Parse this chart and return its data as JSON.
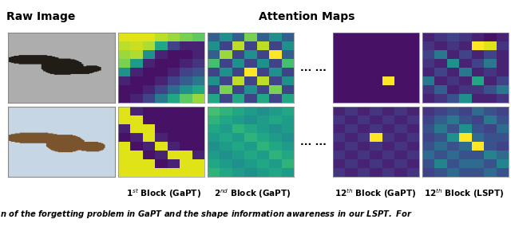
{
  "title_attention": "Attention Maps",
  "title_raw": "Raw Image",
  "label_1": "1$^{st}$ Block (GaPT)",
  "label_2": "2$^{nd}$ Block (GaPT)",
  "label_3": "12$^{th}$ Block (GaPT)",
  "label_4": "12$^{th}$ Block (LSPT)",
  "ellipsis": "... ...",
  "bg_color": "#ffffff",
  "title_fontsize": 10,
  "label_fontsize": 7.5,
  "attn_map_1_bird1": [
    [
      0.95,
      0.95,
      0.95,
      0.9,
      0.85,
      0.8,
      0.75
    ],
    [
      0.9,
      0.92,
      0.88,
      0.6,
      0.2,
      0.1,
      0.1
    ],
    [
      0.85,
      0.88,
      0.5,
      0.1,
      0.05,
      0.05,
      0.1
    ],
    [
      0.8,
      0.55,
      0.1,
      0.05,
      0.05,
      0.1,
      0.15
    ],
    [
      0.5,
      0.1,
      0.05,
      0.05,
      0.1,
      0.2,
      0.25
    ],
    [
      0.1,
      0.05,
      0.05,
      0.1,
      0.2,
      0.3,
      0.4
    ],
    [
      0.05,
      0.05,
      0.1,
      0.2,
      0.35,
      0.5,
      0.6
    ],
    [
      0.05,
      0.1,
      0.2,
      0.4,
      0.6,
      0.75,
      0.85
    ]
  ],
  "attn_map_2_bird1": [
    [
      0.3,
      0.5,
      0.3,
      0.8,
      0.3,
      0.5,
      0.3
    ],
    [
      0.5,
      0.2,
      0.9,
      0.2,
      0.9,
      0.2,
      0.5
    ],
    [
      0.3,
      0.85,
      0.2,
      0.5,
      0.2,
      1.0,
      0.3
    ],
    [
      0.7,
      0.2,
      0.5,
      0.2,
      0.5,
      0.2,
      0.7
    ],
    [
      0.2,
      0.5,
      0.2,
      1.0,
      0.2,
      0.5,
      0.2
    ],
    [
      0.5,
      0.2,
      0.9,
      0.2,
      0.9,
      0.2,
      0.5
    ],
    [
      0.2,
      0.8,
      0.2,
      0.5,
      0.2,
      0.8,
      0.2
    ],
    [
      0.6,
      0.2,
      0.6,
      0.2,
      0.6,
      0.2,
      0.6
    ]
  ],
  "attn_map_3_bird1": [
    [
      0.05,
      0.05,
      0.05,
      0.05,
      0.05,
      0.05,
      0.05
    ],
    [
      0.05,
      0.05,
      0.05,
      0.05,
      0.05,
      0.05,
      0.05
    ],
    [
      0.05,
      0.05,
      0.05,
      0.05,
      0.05,
      0.05,
      0.05
    ],
    [
      0.05,
      0.05,
      0.05,
      0.05,
      0.05,
      0.05,
      0.05
    ],
    [
      0.05,
      0.05,
      0.05,
      0.05,
      0.05,
      0.05,
      0.05
    ],
    [
      0.05,
      0.05,
      0.05,
      0.05,
      1.0,
      0.05,
      0.05
    ],
    [
      0.05,
      0.05,
      0.05,
      0.05,
      0.05,
      0.05,
      0.05
    ],
    [
      0.05,
      0.05,
      0.05,
      0.05,
      0.05,
      0.05,
      0.05
    ]
  ],
  "attn_map_4_bird1": [
    [
      0.1,
      0.15,
      0.2,
      0.15,
      0.1,
      0.05,
      0.1
    ],
    [
      0.15,
      0.1,
      0.15,
      0.1,
      1.0,
      0.95,
      0.15
    ],
    [
      0.2,
      0.4,
      0.1,
      0.2,
      0.1,
      0.2,
      0.1
    ],
    [
      0.15,
      0.1,
      0.5,
      0.1,
      0.2,
      0.4,
      0.1
    ],
    [
      0.1,
      0.2,
      0.1,
      0.4,
      0.1,
      0.15,
      0.1
    ],
    [
      0.4,
      0.1,
      0.15,
      0.1,
      0.6,
      0.1,
      0.2
    ],
    [
      0.15,
      0.3,
      0.1,
      0.15,
      0.15,
      0.25,
      0.4
    ],
    [
      0.1,
      0.15,
      0.25,
      0.5,
      0.1,
      0.1,
      0.15
    ]
  ],
  "attn_map_1_bird2": [
    [
      0.95,
      0.1,
      0.05,
      0.05,
      0.05,
      0.05,
      0.05
    ],
    [
      0.95,
      0.95,
      0.05,
      0.05,
      0.05,
      0.05,
      0.05
    ],
    [
      0.1,
      0.95,
      0.95,
      0.05,
      0.05,
      0.05,
      0.05
    ],
    [
      0.05,
      0.1,
      0.95,
      0.1,
      0.05,
      0.05,
      0.05
    ],
    [
      0.95,
      0.05,
      0.1,
      0.95,
      0.1,
      0.05,
      0.05
    ],
    [
      0.95,
      0.95,
      0.05,
      0.1,
      0.95,
      0.95,
      0.1
    ],
    [
      0.95,
      0.95,
      0.95,
      0.05,
      0.1,
      0.95,
      0.95
    ],
    [
      0.95,
      0.95,
      0.95,
      0.95,
      0.95,
      0.95,
      0.95
    ]
  ],
  "attn_map_2_bird2": [
    [
      0.7,
      0.65,
      0.6,
      0.55,
      0.5,
      0.55,
      0.6
    ],
    [
      0.65,
      0.6,
      0.55,
      0.5,
      0.55,
      0.6,
      0.55
    ],
    [
      0.6,
      0.55,
      0.65,
      0.6,
      0.55,
      0.5,
      0.55
    ],
    [
      0.55,
      0.6,
      0.55,
      0.65,
      0.6,
      0.55,
      0.5
    ],
    [
      0.5,
      0.55,
      0.6,
      0.55,
      0.65,
      0.6,
      0.55
    ],
    [
      0.55,
      0.5,
      0.55,
      0.6,
      0.55,
      0.65,
      0.6
    ],
    [
      0.6,
      0.55,
      0.5,
      0.55,
      0.6,
      0.55,
      0.65
    ],
    [
      0.65,
      0.6,
      0.55,
      0.5,
      0.55,
      0.6,
      0.55
    ]
  ],
  "attn_map_3_bird2": [
    [
      0.1,
      0.15,
      0.1,
      0.15,
      0.1,
      0.15,
      0.1
    ],
    [
      0.15,
      0.1,
      0.15,
      0.1,
      0.15,
      0.1,
      0.15
    ],
    [
      0.1,
      0.15,
      0.1,
      0.15,
      0.1,
      0.15,
      0.1
    ],
    [
      0.15,
      0.1,
      0.15,
      1.0,
      0.15,
      0.1,
      0.15
    ],
    [
      0.1,
      0.15,
      0.1,
      0.15,
      0.1,
      0.15,
      0.1
    ],
    [
      0.15,
      0.1,
      0.15,
      0.1,
      0.15,
      0.1,
      0.15
    ],
    [
      0.1,
      0.15,
      0.1,
      0.15,
      0.1,
      0.15,
      0.1
    ],
    [
      0.15,
      0.1,
      0.15,
      0.1,
      0.15,
      0.1,
      0.15
    ]
  ],
  "attn_map_4_bird2": [
    [
      0.15,
      0.2,
      0.25,
      0.2,
      0.35,
      0.25,
      0.2
    ],
    [
      0.2,
      0.3,
      0.4,
      0.25,
      0.2,
      0.4,
      0.25
    ],
    [
      0.25,
      0.4,
      0.25,
      0.5,
      0.25,
      0.2,
      0.35
    ],
    [
      0.2,
      0.25,
      0.5,
      1.0,
      0.35,
      0.25,
      0.25
    ],
    [
      0.25,
      0.35,
      0.25,
      0.35,
      1.0,
      0.25,
      0.2
    ],
    [
      0.35,
      0.25,
      0.35,
      0.25,
      0.25,
      0.45,
      0.35
    ],
    [
      0.25,
      0.45,
      0.25,
      0.35,
      0.35,
      0.25,
      0.45
    ],
    [
      0.2,
      0.25,
      0.35,
      0.25,
      0.25,
      0.35,
      0.25
    ]
  ],
  "bird1_gray_level": 0.68,
  "bird2_sky_r": 0.78,
  "bird2_sky_g": 0.84,
  "bird2_sky_b": 0.9
}
